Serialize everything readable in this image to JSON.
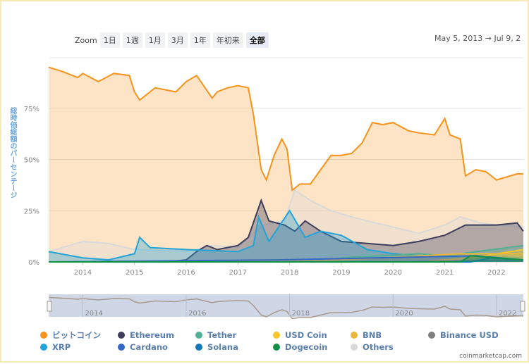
{
  "toolbar": {
    "zoom_label": "Zoom",
    "buttons": [
      "1日",
      "1週",
      "1月",
      "3月",
      "1年",
      "年初来",
      "全部"
    ],
    "active": "全部",
    "range_from": "May 5, 2013",
    "arrow": "→",
    "range_to": "Jul 9, 2"
  },
  "credit": "coinmarketcap.com",
  "chart_data": {
    "type": "area",
    "ylabel": "総時価総額のパーセンテージ",
    "ylim": [
      0,
      100
    ],
    "xlim": [
      2013.34,
      2022.52
    ],
    "yticks": [
      {
        "v": 0,
        "label": "0%"
      },
      {
        "v": 25,
        "label": "25%"
      },
      {
        "v": 50,
        "label": "50%"
      },
      {
        "v": 75,
        "label": "75%"
      }
    ],
    "xticks": [
      "2014",
      "2015",
      "2016",
      "2017",
      "2018",
      "2019",
      "2020",
      "2021",
      "2022"
    ],
    "navigator_ticks": [
      "2014",
      "2016",
      "2018",
      "2020",
      "2022"
    ],
    "grid": true,
    "legend_position": "bottom",
    "series": [
      {
        "name": "Others",
        "color": "#d9d9d9",
        "x": [
          2013.34,
          2014.0,
          2014.5,
          2015.0,
          2016.0,
          2016.5,
          2017.0,
          2017.3,
          2017.5,
          2017.9,
          2018.1,
          2018.4,
          2018.8,
          2019.2,
          2019.5,
          2020.0,
          2020.5,
          2021.0,
          2021.3,
          2021.7,
          2022.0,
          2022.52
        ],
        "y": [
          5,
          10,
          9,
          6,
          5,
          8,
          7,
          14,
          18,
          20,
          35,
          30,
          25,
          22,
          20,
          17,
          14,
          18,
          22,
          19,
          18,
          17
        ]
      },
      {
        "name": "ビットコイン",
        "color": "#f7931a",
        "x": [
          2013.34,
          2013.6,
          2013.9,
          2014.0,
          2014.3,
          2014.6,
          2014.9,
          2015.0,
          2015.1,
          2015.4,
          2015.8,
          2016.0,
          2016.2,
          2016.5,
          2016.6,
          2016.8,
          2017.0,
          2017.2,
          2017.3,
          2017.45,
          2017.55,
          2017.7,
          2017.85,
          2017.95,
          2018.05,
          2018.2,
          2018.4,
          2018.6,
          2018.8,
          2019.0,
          2019.2,
          2019.4,
          2019.6,
          2019.8,
          2020.0,
          2020.3,
          2020.5,
          2020.8,
          2021.0,
          2021.1,
          2021.3,
          2021.4,
          2021.6,
          2021.8,
          2022.0,
          2022.4,
          2022.52
        ],
        "y": [
          95,
          93,
          90,
          92,
          88,
          92,
          91,
          83,
          79,
          85,
          83,
          88,
          91,
          80,
          83,
          85,
          86,
          85,
          72,
          45,
          40,
          52,
          60,
          55,
          35,
          38,
          38,
          45,
          52,
          52,
          53,
          58,
          68,
          67,
          68,
          64,
          63,
          62,
          70,
          62,
          60,
          42,
          45,
          44,
          40,
          43,
          43
        ]
      },
      {
        "name": "Ethereum",
        "color": "#3c3c5d",
        "x": [
          2013.34,
          2015.6,
          2016.0,
          2016.2,
          2016.4,
          2016.6,
          2017.0,
          2017.2,
          2017.45,
          2017.6,
          2017.9,
          2018.1,
          2018.3,
          2018.6,
          2019.0,
          2019.5,
          2020.0,
          2020.5,
          2021.0,
          2021.4,
          2021.7,
          2022.0,
          2022.4,
          2022.52
        ],
        "y": [
          0,
          0,
          1,
          5,
          8,
          6,
          8,
          12,
          30,
          20,
          18,
          15,
          20,
          15,
          10,
          9,
          8,
          10,
          13,
          18,
          18,
          18,
          19,
          15
        ]
      },
      {
        "name": "XRP",
        "color": "#23a4d8",
        "x": [
          2013.34,
          2014.0,
          2014.5,
          2015.0,
          2015.1,
          2015.3,
          2016.0,
          2017.0,
          2017.3,
          2017.4,
          2017.6,
          2018.0,
          2018.3,
          2018.6,
          2019.0,
          2019.5,
          2020.0,
          2021.0,
          2021.5,
          2022.52
        ],
        "y": [
          5,
          2,
          1,
          4,
          12,
          7,
          6,
          5,
          8,
          22,
          10,
          25,
          12,
          15,
          13,
          6,
          4,
          2,
          3,
          2
        ]
      },
      {
        "name": "Tether",
        "color": "#50af95",
        "x": [
          2013.34,
          2018.5,
          2019.0,
          2020.5,
          2021.0,
          2022.52
        ],
        "y": [
          0,
          0,
          2,
          4,
          3,
          8
        ]
      },
      {
        "name": "USD Coin",
        "color": "#f7c527",
        "x": [
          2013.34,
          2020.5,
          2021.5,
          2022.52
        ],
        "y": [
          0,
          0,
          2,
          6
        ]
      },
      {
        "name": "BNB",
        "color": "#e8b83a",
        "x": [
          2013.34,
          2019.0,
          2021.3,
          2022.52
        ],
        "y": [
          0,
          1,
          4,
          4
        ]
      },
      {
        "name": "Binance USD",
        "color": "#7f7f7f",
        "x": [
          2013.34,
          2020.0,
          2022.52
        ],
        "y": [
          0,
          0,
          1
        ]
      },
      {
        "name": "Cardano",
        "color": "#3566c8",
        "x": [
          2013.34,
          2017.8,
          2021.6,
          2022.52
        ],
        "y": [
          0,
          1,
          3,
          1
        ]
      },
      {
        "name": "Solana",
        "color": "#1279b8",
        "x": [
          2013.34,
          2021.5,
          2021.9,
          2022.52
        ],
        "y": [
          0,
          0,
          2,
          1
        ]
      },
      {
        "name": "Dogecoin",
        "color": "#0f9145",
        "x": [
          2013.34,
          2021.3,
          2021.5,
          2022.52
        ],
        "y": [
          0,
          0,
          3,
          1
        ]
      }
    ],
    "legend_order": [
      "ビットコイン",
      "Ethereum",
      "Tether",
      "USD Coin",
      "BNB",
      "Binance USD",
      "XRP",
      "Cardano",
      "Solana",
      "Dogecoin",
      "Others"
    ]
  }
}
